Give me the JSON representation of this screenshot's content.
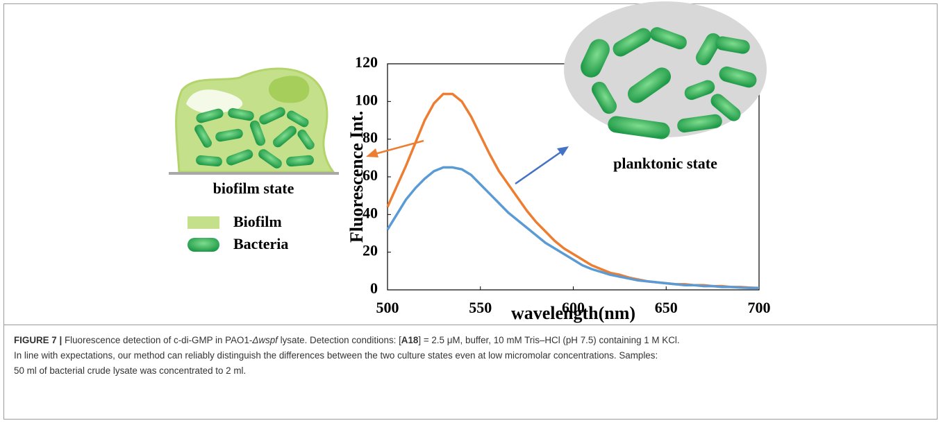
{
  "chart_data": {
    "type": "line",
    "ylabel": "Fluorescence Int.",
    "xlabel": "wavelength(nm)",
    "x": [
      500,
      505,
      510,
      515,
      520,
      525,
      530,
      535,
      540,
      545,
      550,
      555,
      560,
      565,
      570,
      575,
      580,
      585,
      590,
      595,
      600,
      605,
      610,
      615,
      620,
      625,
      630,
      635,
      640,
      645,
      650,
      655,
      660,
      665,
      670,
      675,
      680,
      685,
      690,
      695,
      700
    ],
    "series": [
      {
        "color": "#ed7d31",
        "values": [
          44,
          55,
          66,
          78,
          90,
          99,
          104,
          104,
          100,
          92,
          82,
          72,
          63,
          56,
          49,
          42,
          36,
          31,
          26,
          22,
          19,
          16,
          13,
          11,
          9,
          8,
          6.5,
          5.5,
          4.5,
          4,
          3.5,
          3,
          3,
          2.5,
          2.5,
          2,
          2,
          1.5,
          1.5,
          1.2,
          1
        ]
      },
      {
        "color": "#5b9bd5",
        "values": [
          32,
          40,
          48,
          54,
          59,
          63,
          65,
          65,
          64,
          61,
          56,
          51,
          46,
          41,
          37,
          33,
          29,
          25,
          22,
          19,
          16,
          13,
          11,
          9.5,
          8,
          7,
          6,
          5,
          4.5,
          4,
          3.5,
          3,
          2.5,
          2.5,
          2,
          2,
          1.5,
          1.5,
          1.2,
          1,
          1
        ]
      }
    ],
    "xlim": [
      500,
      700
    ],
    "xticks": [
      500,
      550,
      600,
      650,
      700
    ],
    "ylim": [
      0,
      120
    ],
    "yticks": [
      0,
      20,
      40,
      60,
      80,
      100,
      120
    ]
  },
  "illustration": {
    "biofilm_caption": "biofilm state",
    "legend": [
      "Biofilm",
      "Bacteria"
    ],
    "planktonic_caption": "planktonic state"
  },
  "caption": {
    "lines": [
      [
        {
          "text": "FIGURE 7 |",
          "style": "b"
        },
        {
          "text": " Fluorescence detection of c-di-GMP in PAO1-",
          "style": "n"
        },
        {
          "text": "Δwspf",
          "style": "i"
        },
        {
          "text": " lysate. Detection conditions: [",
          "style": "n"
        },
        {
          "text": "A18",
          "style": "b"
        },
        {
          "text": "] = 2.5 μM, buffer, 10 mM Tris–HCl (pH 7.5) containing 1 M KCl.",
          "style": "n"
        }
      ],
      [
        {
          "text": "In line with expectations, our method can reliably distinguish the differences between the two culture states even at low micromolar concentrations. Samples:",
          "style": "n"
        }
      ],
      [
        {
          "text": "50 ml of bacterial crude lysate was concentrated to 2 ml.",
          "style": "n"
        }
      ]
    ]
  }
}
